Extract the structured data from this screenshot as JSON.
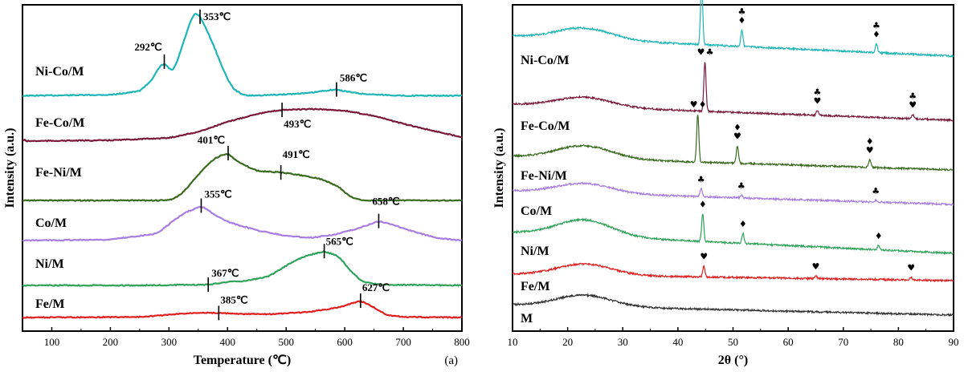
{
  "chart_data": [
    {
      "type": "line",
      "panel_label": "(a)",
      "xlabel": "Temperature (℃)",
      "ylabel": "Intensity (a.u.)",
      "xlim": [
        50,
        800
      ],
      "xticks": [
        "100",
        "200",
        "300",
        "400",
        "500",
        "600",
        "700",
        "800"
      ],
      "grid": false,
      "series": [
        {
          "name": "Ni-Co/M",
          "color": "#1fb5b5",
          "points": [
            [
              50,
              0.05
            ],
            [
              200,
              0.06
            ],
            [
              250,
              0.1
            ],
            [
              270,
              0.22
            ],
            [
              285,
              0.38
            ],
            [
              292,
              0.43
            ],
            [
              300,
              0.35
            ],
            [
              307,
              0.3
            ],
            [
              320,
              0.55
            ],
            [
              335,
              0.85
            ],
            [
              345,
              1.0
            ],
            [
              353,
              0.93
            ],
            [
              365,
              0.78
            ],
            [
              380,
              0.55
            ],
            [
              395,
              0.3
            ],
            [
              410,
              0.12
            ],
            [
              430,
              0.05
            ],
            [
              480,
              0.06
            ],
            [
              540,
              0.08
            ],
            [
              570,
              0.11
            ],
            [
              586,
              0.12
            ],
            [
              600,
              0.1
            ],
            [
              630,
              0.07
            ],
            [
              700,
              0.05
            ],
            [
              800,
              0.05
            ]
          ],
          "peaks": [
            {
              "x": 292,
              "label": "292℃"
            },
            {
              "x": 353,
              "label": "353℃"
            },
            {
              "x": 586,
              "label": "586℃"
            }
          ]
        },
        {
          "name": "Fe-Co/M",
          "color": "#7a1a3a",
          "points": [
            [
              50,
              0.02
            ],
            [
              200,
              0.04
            ],
            [
              300,
              0.1
            ],
            [
              350,
              0.25
            ],
            [
              400,
              0.5
            ],
            [
              450,
              0.7
            ],
            [
              493,
              0.8
            ],
            [
              550,
              0.82
            ],
            [
              600,
              0.78
            ],
            [
              650,
              0.65
            ],
            [
              700,
              0.45
            ],
            [
              750,
              0.28
            ],
            [
              800,
              0.12
            ]
          ],
          "peaks": [
            {
              "x": 493,
              "label": "493℃"
            }
          ]
        },
        {
          "name": "Fe-Ni/M",
          "color": "#3a6b1e",
          "points": [
            [
              50,
              0.0
            ],
            [
              200,
              0.0
            ],
            [
              300,
              0.0
            ],
            [
              320,
              0.1
            ],
            [
              340,
              0.35
            ],
            [
              360,
              0.6
            ],
            [
              380,
              0.8
            ],
            [
              401,
              0.88
            ],
            [
              420,
              0.7
            ],
            [
              450,
              0.55
            ],
            [
              491,
              0.52
            ],
            [
              520,
              0.48
            ],
            [
              560,
              0.4
            ],
            [
              590,
              0.25
            ],
            [
              610,
              0.06
            ],
            [
              630,
              0.0
            ],
            [
              800,
              0.0
            ]
          ],
          "peaks": [
            {
              "x": 401,
              "label": "401℃"
            },
            {
              "x": 491,
              "label": "491℃"
            }
          ]
        },
        {
          "name": "Co/M",
          "color": "#a87de0",
          "points": [
            [
              50,
              0.0
            ],
            [
              200,
              0.02
            ],
            [
              280,
              0.15
            ],
            [
              310,
              0.45
            ],
            [
              330,
              0.62
            ],
            [
              345,
              0.68
            ],
            [
              355,
              0.75
            ],
            [
              375,
              0.58
            ],
            [
              400,
              0.4
            ],
            [
              450,
              0.22
            ],
            [
              500,
              0.1
            ],
            [
              540,
              0.06
            ],
            [
              580,
              0.12
            ],
            [
              620,
              0.25
            ],
            [
              650,
              0.38
            ],
            [
              658,
              0.42
            ],
            [
              680,
              0.35
            ],
            [
              720,
              0.18
            ],
            [
              760,
              0.05
            ],
            [
              800,
              0.0
            ]
          ],
          "peaks": [
            {
              "x": 355,
              "label": "355℃"
            },
            {
              "x": 658,
              "label": "658℃"
            }
          ]
        },
        {
          "name": "Ni/M",
          "color": "#2fa35a",
          "points": [
            [
              50,
              0.0
            ],
            [
              250,
              0.0
            ],
            [
              367,
              0.02
            ],
            [
              400,
              0.1
            ],
            [
              430,
              0.12
            ],
            [
              470,
              0.25
            ],
            [
              500,
              0.55
            ],
            [
              530,
              0.8
            ],
            [
              565,
              0.95
            ],
            [
              590,
              0.8
            ],
            [
              610,
              0.4
            ],
            [
              630,
              0.1
            ],
            [
              660,
              0.02
            ],
            [
              800,
              0.0
            ]
          ],
          "peaks": [
            {
              "x": 367,
              "label": "367℃"
            },
            {
              "x": 565,
              "label": "565℃"
            }
          ]
        },
        {
          "name": "Fe/M",
          "color": "#e02020",
          "points": [
            [
              50,
              0.0
            ],
            [
              250,
              0.02
            ],
            [
              300,
              0.12
            ],
            [
              350,
              0.22
            ],
            [
              385,
              0.2
            ],
            [
              420,
              0.15
            ],
            [
              480,
              0.15
            ],
            [
              540,
              0.25
            ],
            [
              590,
              0.45
            ],
            [
              627,
              0.75
            ],
            [
              650,
              0.45
            ],
            [
              670,
              0.12
            ],
            [
              700,
              0.02
            ],
            [
              800,
              0.0
            ]
          ],
          "peaks": [
            {
              "x": 385,
              "label": "385℃"
            },
            {
              "x": 627,
              "label": "627℃"
            }
          ]
        }
      ]
    },
    {
      "type": "line",
      "xlabel": "2θ (°)",
      "ylabel": "Intensity (a.u.)",
      "xlim": [
        10,
        90
      ],
      "xticks": [
        "10",
        "20",
        "30",
        "40",
        "50",
        "60",
        "70",
        "80",
        "90"
      ],
      "grid": false,
      "series": [
        {
          "name": "Ni-Co/M",
          "color": "#1fb5b5",
          "peaks": [
            {
              "x": 44.3,
              "h": 0.55,
              "symbols": [
                "♦",
                "♣"
              ],
              "stack": "row"
            },
            {
              "x": 51.6,
              "h": 0.15,
              "symbols": [
                "♣",
                "♦"
              ],
              "stack": "col"
            },
            {
              "x": 76.0,
              "h": 0.08,
              "symbols": [
                "♣",
                "♦"
              ],
              "stack": "col"
            }
          ]
        },
        {
          "name": "Fe-Co/M",
          "color": "#7a1a3a",
          "peaks": [
            {
              "x": 44.9,
              "h": 1.0,
              "symbols": [
                "♥",
                "♣"
              ],
              "stack": "row"
            },
            {
              "x": 65.3,
              "h": 0.1,
              "symbols": [
                "♣",
                "♥"
              ],
              "stack": "col"
            },
            {
              "x": 82.6,
              "h": 0.09,
              "symbols": [
                "♣",
                "♥"
              ],
              "stack": "col"
            }
          ]
        },
        {
          "name": "Fe-Ni/M",
          "color": "#3a6b1e",
          "peaks": [
            {
              "x": 43.6,
              "h": 0.6,
              "symbols": [
                "♥",
                "♦"
              ],
              "stack": "row"
            },
            {
              "x": 50.8,
              "h": 0.22,
              "symbols": [
                "♦",
                "♥"
              ],
              "stack": "col"
            },
            {
              "x": 74.8,
              "h": 0.1,
              "symbols": [
                "♦",
                "♥"
              ],
              "stack": "col"
            }
          ]
        },
        {
          "name": "Co/M",
          "color": "#a87de0",
          "peaks": [
            {
              "x": 44.2,
              "h": 0.25,
              "symbols": [
                "♣"
              ],
              "stack": "col"
            },
            {
              "x": 51.5,
              "h": 0.08,
              "symbols": [
                "♣"
              ],
              "stack": "col"
            },
            {
              "x": 75.9,
              "h": 0.05,
              "symbols": [
                "♣"
              ],
              "stack": "col"
            }
          ]
        },
        {
          "name": "Ni/M",
          "color": "#2fa35a",
          "peaks": [
            {
              "x": 44.5,
              "h": 0.6,
              "symbols": [
                "♦"
              ],
              "stack": "col"
            },
            {
              "x": 51.8,
              "h": 0.22,
              "symbols": [
                "♦"
              ],
              "stack": "col"
            },
            {
              "x": 76.4,
              "h": 0.1,
              "symbols": [
                "♦"
              ],
              "stack": "col"
            }
          ]
        },
        {
          "name": "Fe/M",
          "color": "#e02020",
          "peaks": [
            {
              "x": 44.7,
              "h": 0.2,
              "symbols": [
                "♥"
              ],
              "stack": "col"
            },
            {
              "x": 65.0,
              "h": 0.05,
              "symbols": [
                "♥"
              ],
              "stack": "col"
            },
            {
              "x": 82.3,
              "h": 0.05,
              "symbols": [
                "♥"
              ],
              "stack": "col"
            }
          ]
        },
        {
          "name": "M",
          "color": "#333333",
          "peaks": []
        }
      ]
    }
  ]
}
